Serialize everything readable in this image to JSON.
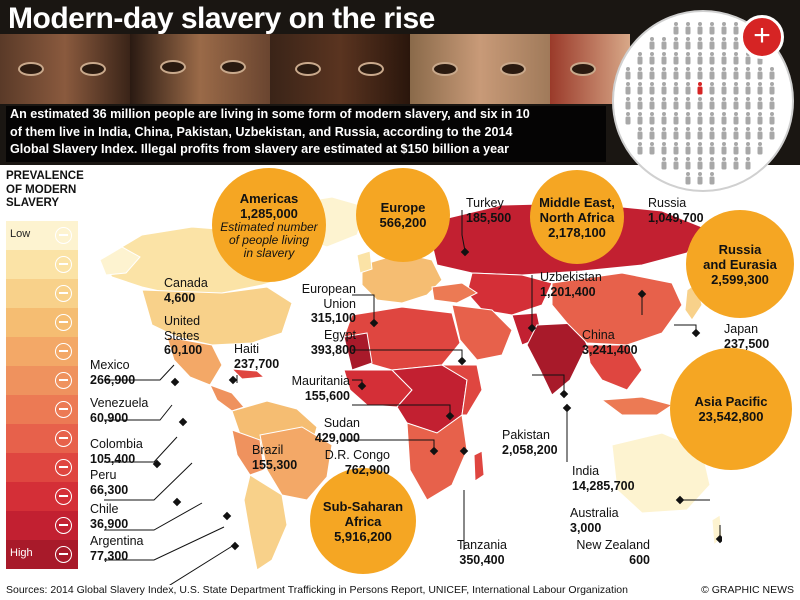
{
  "header": {
    "title": "Modern-day slavery on the rise",
    "intro_lines": [
      "An estimated 36 million people are living in some form of modern slavery, and six in 10",
      "of them live in India, China, Pakistan, Uzbekistan, and Russia, according to the 2014",
      "Global Slavery Index. Illegal profits from slavery are estimated at $150 billion a year"
    ]
  },
  "legend": {
    "title_lines": [
      "PREVALENCE",
      "OF MODERN",
      "SLAVERY"
    ],
    "low_label": "Low",
    "high_label": "High",
    "colors": [
      "#fdf3d0",
      "#fbe3a6",
      "#f8d18a",
      "#f5bd72",
      "#f3a867",
      "#ef925e",
      "#ec7a54",
      "#e7614b",
      "#df4640",
      "#d42f37",
      "#c22031",
      "#a81a2a"
    ]
  },
  "regions": [
    {
      "name": "Americas",
      "value": "1,285,000",
      "note_lines": [
        "Estimated number",
        "of people living",
        "in slavery"
      ]
    },
    {
      "name": "Europe",
      "value": "566,200"
    },
    {
      "name_lines": [
        "Middle East,",
        "North Africa"
      ],
      "value": "2,178,100"
    },
    {
      "name_lines": [
        "Russia",
        "and Eurasia"
      ],
      "value": "2,599,300"
    },
    {
      "name": "Asia Pacific",
      "value": "23,542,800"
    },
    {
      "name_lines": [
        "Sub-Saharan",
        "Africa"
      ],
      "value": "5,916,200"
    }
  ],
  "countries": [
    {
      "name": "Canada",
      "value": "4,600"
    },
    {
      "name_lines": [
        "United",
        "States"
      ],
      "value": "60,100"
    },
    {
      "name": "Haiti",
      "value": "237,700"
    },
    {
      "name": "Mexico",
      "value": "266,900"
    },
    {
      "name": "Venezuela",
      "value": "60,900"
    },
    {
      "name": "Colombia",
      "value": "105,400"
    },
    {
      "name": "Brazil",
      "value": "155,300"
    },
    {
      "name": "Peru",
      "value": "66,300"
    },
    {
      "name": "Chile",
      "value": "36,900"
    },
    {
      "name": "Argentina",
      "value": "77,300"
    },
    {
      "name_lines": [
        "European",
        "Union"
      ],
      "value": "315,100"
    },
    {
      "name": "Egypt",
      "value": "393,800"
    },
    {
      "name": "Mauritania",
      "value": "155,600"
    },
    {
      "name": "Sudan",
      "value": "429,000"
    },
    {
      "name": "D.R. Congo",
      "value": "762,900"
    },
    {
      "name": "Tanzania",
      "value": "350,400"
    },
    {
      "name": "Turkey",
      "value": "185,500"
    },
    {
      "name": "Uzbekistan",
      "value": "1,201,400"
    },
    {
      "name": "Russia",
      "value": "1,049,700"
    },
    {
      "name": "China",
      "value": "3,241,400"
    },
    {
      "name": "Japan",
      "value": "237,500"
    },
    {
      "name": "Pakistan",
      "value": "2,058,200"
    },
    {
      "name": "India",
      "value": "14,285,700"
    },
    {
      "name": "Australia",
      "value": "3,000"
    },
    {
      "name": "New Zealand",
      "value": "600"
    }
  ],
  "footer": {
    "sources": "Sources: 2014 Global Slavery Index, U.S. State Department Trafficking in Persons Report, UNICEF, International Labour Organization",
    "credit": "© GRAPHIC NEWS"
  },
  "colors": {
    "bubble": "#f5a623",
    "accent_red": "#d62424",
    "map_dark_red": "#c4282e"
  },
  "icons": {
    "plus_button": "plus-icon",
    "figure_grid": "person-icon"
  }
}
